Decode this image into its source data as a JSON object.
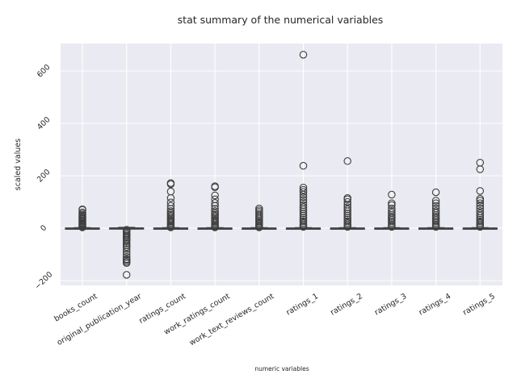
{
  "chart_data": {
    "type": "boxplot",
    "title": "stat summary of the numerical variables",
    "xlabel": "numeric variables",
    "ylabel": "scaled values",
    "ylim": [
      -215,
      700
    ],
    "yticks": [
      -200,
      0,
      200,
      400,
      600
    ],
    "ytick_labels": [
      "−200",
      "0",
      "200",
      "400",
      "600"
    ],
    "grid": true,
    "categories": [
      "books_count",
      "original_publication_year",
      "ratings_count",
      "work_ratings_count",
      "work_text_reviews_count",
      "ratings_1",
      "ratings_2",
      "ratings_3",
      "ratings_4",
      "ratings_5"
    ],
    "boxes": [
      {
        "q1": -0.5,
        "median": 0,
        "q3": 0.5,
        "whisker_low": -2,
        "whisker_high": 2,
        "outliers": [
          72,
          70,
          60,
          55,
          50,
          45,
          42,
          38,
          35,
          30,
          27,
          24,
          20,
          17,
          14,
          11,
          8,
          5,
          3
        ]
      },
      {
        "q1": -1,
        "median": 0,
        "q3": 1,
        "whisker_low": -3,
        "whisker_high": 3,
        "outliers": [
          -178,
          -133,
          -128,
          -122,
          -118,
          -110,
          -100,
          -90,
          -80,
          -72,
          -65,
          -58,
          -50,
          -45,
          -40,
          -35,
          -30,
          -25,
          -20,
          -15,
          -10,
          -6
        ]
      },
      {
        "q1": -0.5,
        "median": 0,
        "q3": 0.5,
        "whisker_low": -2,
        "whisker_high": 2,
        "outliers": [
          172,
          168,
          140,
          115,
          98,
          85,
          74,
          65,
          58,
          52,
          46,
          40,
          35,
          30,
          25,
          20,
          15,
          10,
          6,
          3
        ]
      },
      {
        "q1": -0.5,
        "median": 0,
        "q3": 0.5,
        "whisker_low": -2,
        "whisker_high": 2,
        "outliers": [
          160,
          156,
          125,
          110,
          96,
          85,
          74,
          65,
          58,
          52,
          46,
          40,
          35,
          30,
          25,
          20,
          15,
          10,
          6,
          3
        ]
      },
      {
        "q1": -0.5,
        "median": 0,
        "q3": 0.5,
        "whisker_low": -2,
        "whisker_high": 2,
        "outliers": [
          75,
          68,
          62,
          55,
          48,
          42,
          36,
          30,
          25,
          20,
          15,
          10,
          6,
          3
        ]
      },
      {
        "q1": -0.5,
        "median": 0,
        "q3": 0.5,
        "whisker_low": -2,
        "whisker_high": 2,
        "outliers": [
          662,
          238,
          155,
          146,
          138,
          128,
          118,
          108,
          98,
          88,
          80,
          72,
          64,
          56,
          48,
          40,
          33,
          26,
          20,
          14,
          9,
          5
        ]
      },
      {
        "q1": -0.5,
        "median": 0,
        "q3": 0.5,
        "whisker_low": -2,
        "whisker_high": 2,
        "outliers": [
          256,
          115,
          110,
          100,
          90,
          80,
          72,
          64,
          56,
          48,
          40,
          33,
          26,
          20,
          14,
          9,
          5
        ]
      },
      {
        "q1": -0.5,
        "median": 0,
        "q3": 0.5,
        "whisker_low": -2,
        "whisker_high": 2,
        "outliers": [
          128,
          95,
          88,
          75,
          65,
          58,
          50,
          44,
          38,
          32,
          26,
          20,
          14,
          9,
          5
        ]
      },
      {
        "q1": -0.5,
        "median": 0,
        "q3": 0.5,
        "whisker_low": -2,
        "whisker_high": 2,
        "outliers": [
          137,
          105,
          95,
          85,
          75,
          65,
          58,
          50,
          44,
          38,
          32,
          26,
          20,
          14,
          9,
          5
        ]
      },
      {
        "q1": -0.5,
        "median": 0,
        "q3": 0.5,
        "whisker_low": -2,
        "whisker_high": 2,
        "outliers": [
          250,
          225,
          142,
          112,
          105,
          95,
          85,
          75,
          65,
          56,
          48,
          40,
          33,
          26,
          20,
          14,
          9,
          5
        ]
      }
    ]
  },
  "colors": {
    "background": "#eaeaf2",
    "grid": "#ffffff",
    "box_fill": "#4c72b0",
    "box_edge": "#3f3f3f"
  }
}
